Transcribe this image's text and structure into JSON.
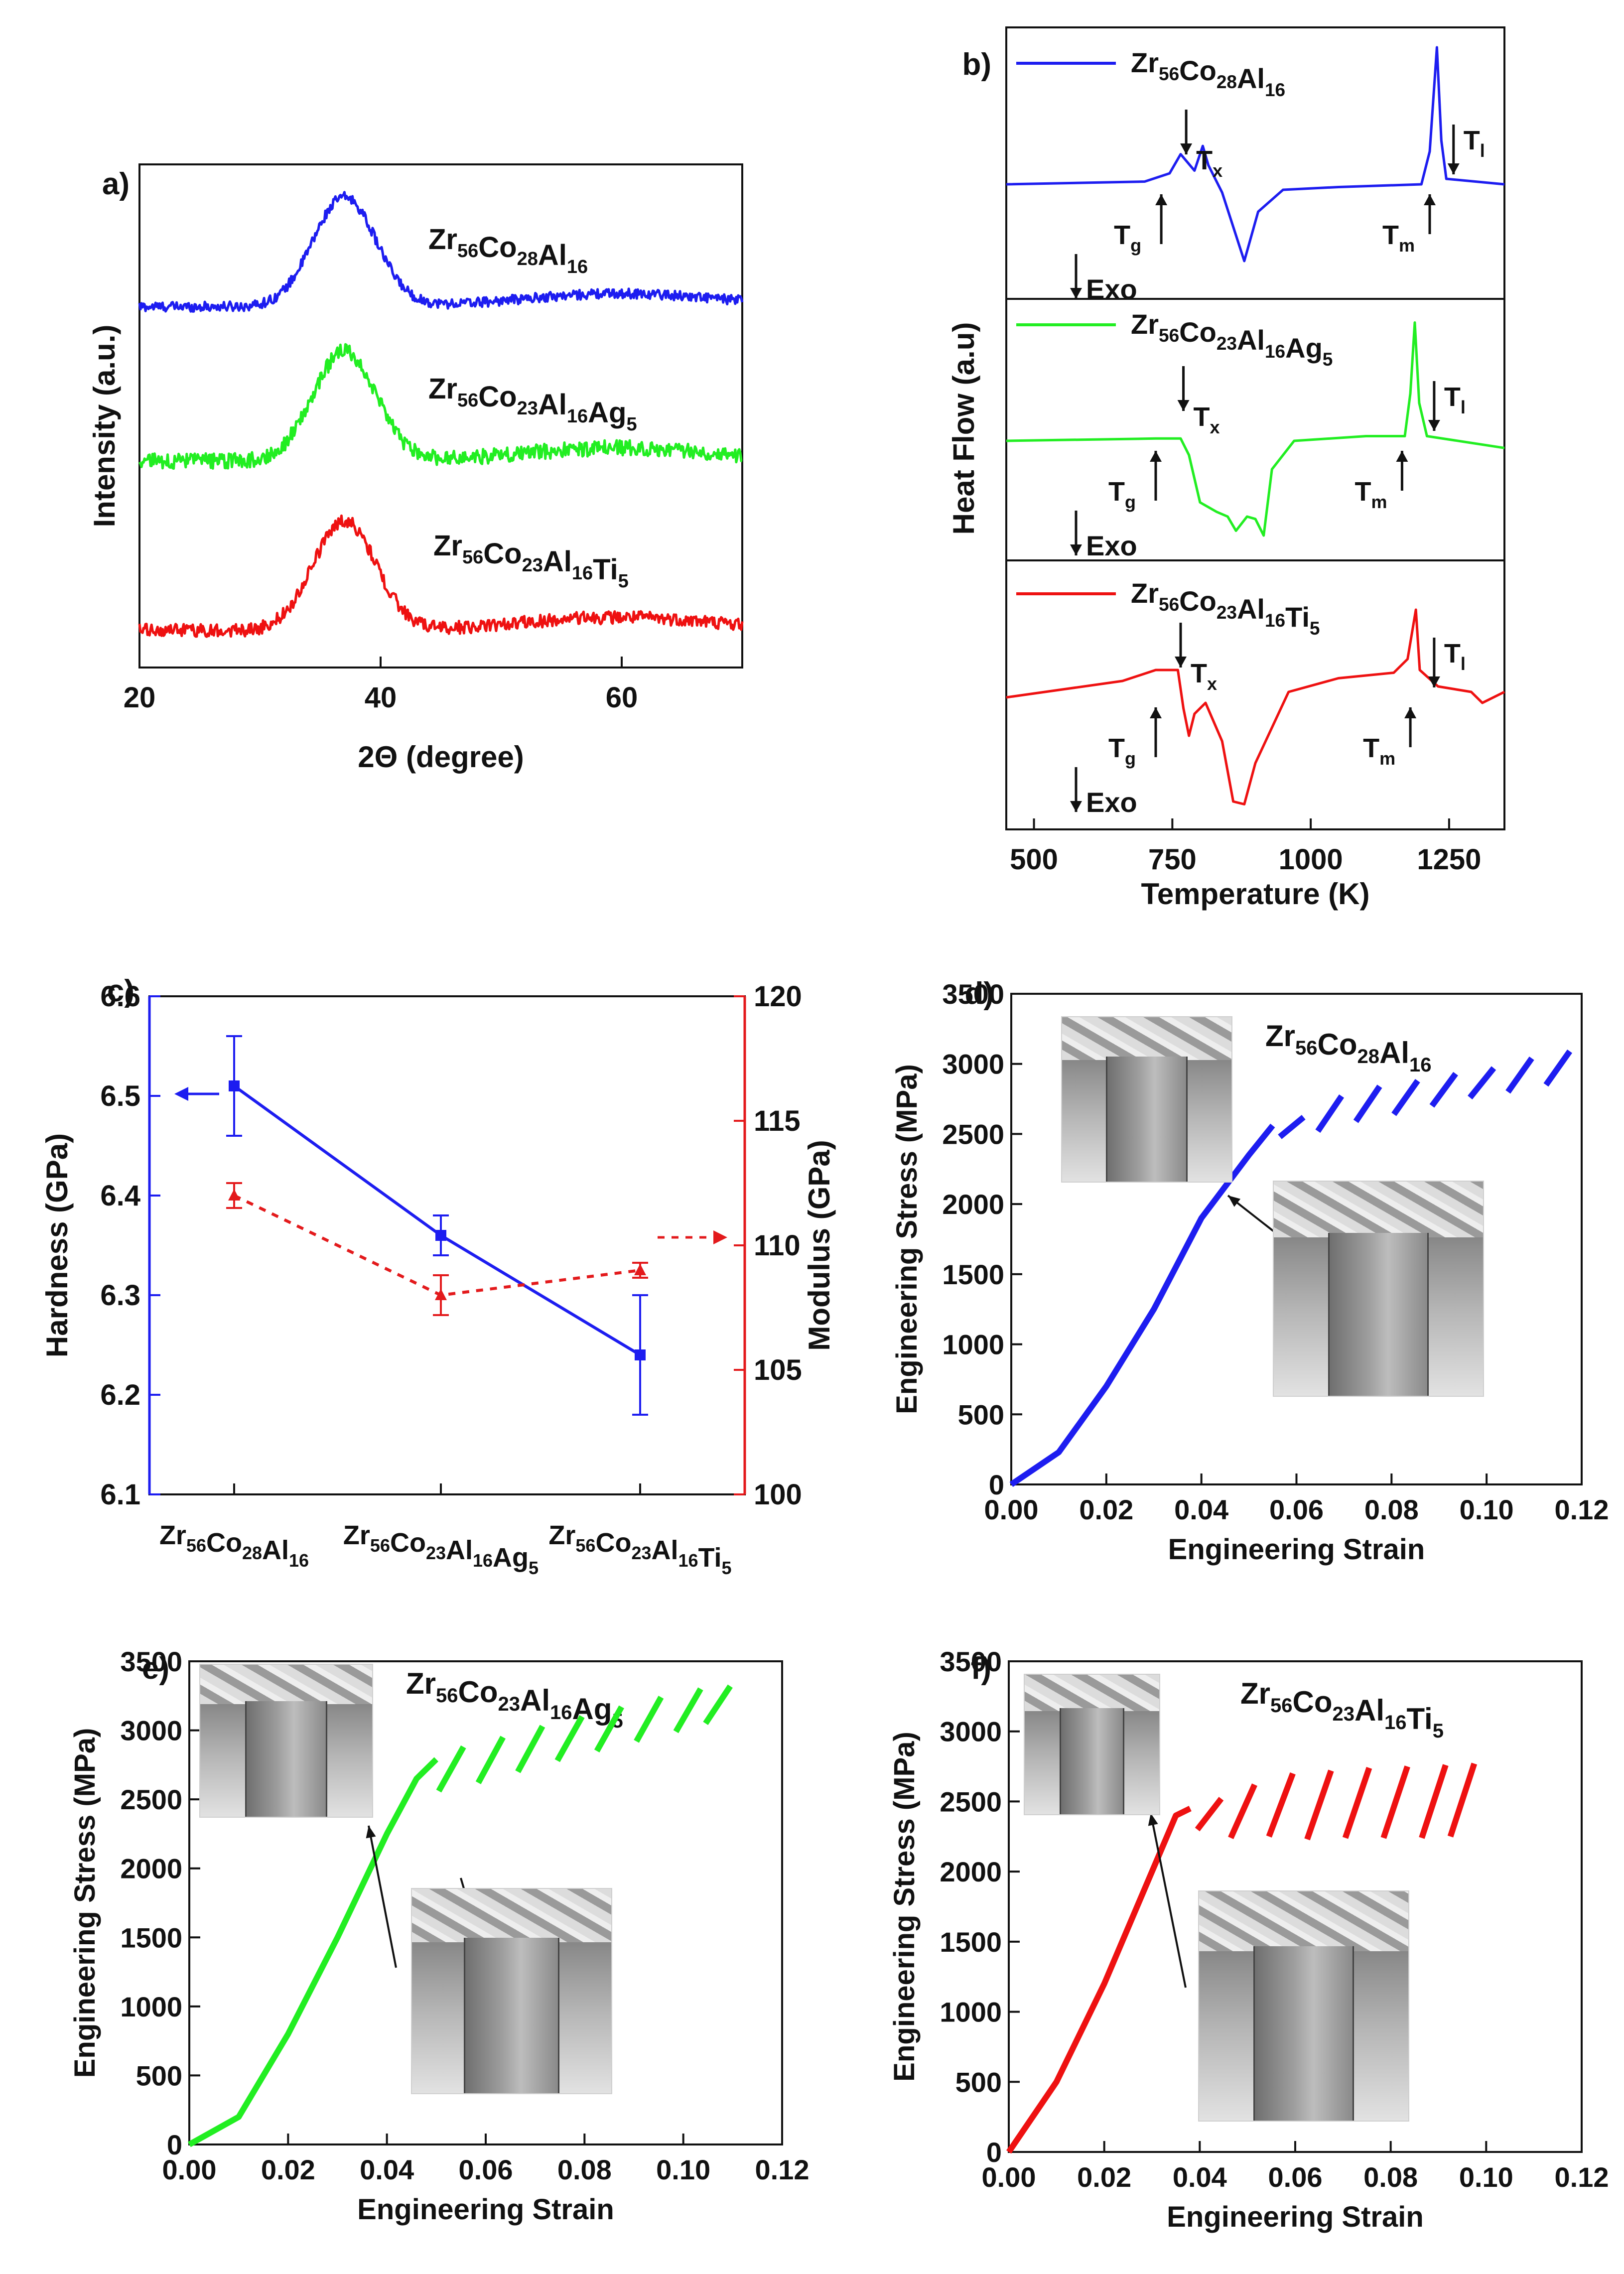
{
  "colors": {
    "blue": "#1d1df0",
    "green": "#22ee22",
    "red": "#ee1111",
    "modulus_red": "#e31a1c"
  },
  "chart_data": [
    {
      "panel": "a)",
      "type": "line",
      "xlabel": "2Θ (degree)",
      "ylabel": "Intensity (a.u.)",
      "xlim": [
        20,
        70
      ],
      "xticks": [
        "20",
        "40",
        "60"
      ],
      "series": [
        {
          "name_parts": [
            [
              "Zr",
              "56"
            ],
            [
              "Co",
              "28"
            ],
            [
              "Al",
              "16"
            ]
          ],
          "color": "#1d1df0",
          "peak_x": 37,
          "peak_height": 1.0,
          "noise": 0.09
        },
        {
          "name_parts": [
            [
              "Zr",
              "56"
            ],
            [
              "Co",
              "23"
            ],
            [
              "Al",
              "16"
            ],
            [
              "Ag",
              "5"
            ]
          ],
          "color": "#22ee22",
          "peak_x": 37,
          "peak_height": 1.0,
          "noise": 0.14
        },
        {
          "name_parts": [
            [
              "Zr",
              "56"
            ],
            [
              "Co",
              "23"
            ],
            [
              "Al",
              "16"
            ],
            [
              "Ti",
              "5"
            ]
          ],
          "color": "#ee1111",
          "peak_x": 37,
          "peak_height": 1.0,
          "noise": 0.12
        }
      ]
    },
    {
      "panel": "b)",
      "type": "line",
      "xlabel": "Temperature (K)",
      "ylabel": "Heat Flow (a.u)",
      "xlim": [
        450,
        1350
      ],
      "xticks": [
        "500",
        "750",
        "1000",
        "1250"
      ],
      "exo_label": "Exo",
      "series": [
        {
          "name_parts": [
            [
              "Zr",
              "56"
            ],
            [
              "Co",
              "28"
            ],
            [
              "Al",
              "16"
            ]
          ],
          "color": "#1d1df0",
          "Tg": 730,
          "Tx": 775,
          "Tm": 1215,
          "Tl": 1240,
          "points": [
            [
              450,
              0
            ],
            [
              700,
              0.05
            ],
            [
              745,
              0.2
            ],
            [
              765,
              0.55
            ],
            [
              790,
              0.25
            ],
            [
              805,
              0.7
            ],
            [
              815,
              0.35
            ],
            [
              840,
              -0.15
            ],
            [
              880,
              -1.4
            ],
            [
              905,
              -0.5
            ],
            [
              950,
              -0.1
            ],
            [
              1050,
              -0.05
            ],
            [
              1200,
              0
            ],
            [
              1215,
              0.6
            ],
            [
              1228,
              2.5
            ],
            [
              1236,
              0.8
            ],
            [
              1245,
              0.1
            ],
            [
              1350,
              0
            ]
          ]
        },
        {
          "name_parts": [
            [
              "Zr",
              "56"
            ],
            [
              "Co",
              "23"
            ],
            [
              "Al",
              "16"
            ],
            [
              "Ag",
              "5"
            ]
          ],
          "color": "#22ee22",
          "Tg": 720,
          "Tx": 770,
          "Tm": 1165,
          "Tl": 1205,
          "points": [
            [
              450,
              0
            ],
            [
              720,
              0.05
            ],
            [
              765,
              0.05
            ],
            [
              780,
              -0.3
            ],
            [
              800,
              -1.3
            ],
            [
              830,
              -1.5
            ],
            [
              850,
              -1.6
            ],
            [
              865,
              -1.9
            ],
            [
              885,
              -1.6
            ],
            [
              900,
              -1.65
            ],
            [
              915,
              -2.0
            ],
            [
              930,
              -0.6
            ],
            [
              970,
              0
            ],
            [
              1100,
              0.1
            ],
            [
              1170,
              0.1
            ],
            [
              1180,
              1.0
            ],
            [
              1188,
              2.5
            ],
            [
              1196,
              0.8
            ],
            [
              1210,
              0.1
            ],
            [
              1350,
              -0.15
            ]
          ]
        },
        {
          "name_parts": [
            [
              "Zr",
              "56"
            ],
            [
              "Co",
              "23"
            ],
            [
              "Al",
              "16"
            ],
            [
              "Ti",
              "5"
            ]
          ],
          "color": "#ee1111",
          "Tg": 720,
          "Tx": 765,
          "Tm": 1180,
          "Tl": 1205,
          "points": [
            [
              450,
              0
            ],
            [
              660,
              0.3
            ],
            [
              720,
              0.5
            ],
            [
              760,
              0.5
            ],
            [
              770,
              -0.2
            ],
            [
              780,
              -0.7
            ],
            [
              790,
              -0.3
            ],
            [
              810,
              -0.1
            ],
            [
              840,
              -0.8
            ],
            [
              860,
              -1.9
            ],
            [
              880,
              -1.95
            ],
            [
              900,
              -1.2
            ],
            [
              960,
              0.1
            ],
            [
              1050,
              0.35
            ],
            [
              1150,
              0.45
            ],
            [
              1175,
              0.7
            ],
            [
              1190,
              1.6
            ],
            [
              1197,
              0.5
            ],
            [
              1230,
              0.2
            ],
            [
              1290,
              0.1
            ],
            [
              1310,
              -0.1
            ],
            [
              1350,
              0.1
            ]
          ]
        }
      ]
    },
    {
      "panel": "c)",
      "type": "line",
      "ylabel_left": "Hardness (GPa)",
      "ylabel_right": "Modulus (GPa)",
      "ylim_left": [
        6.1,
        6.6
      ],
      "yticks_left": [
        "6.1",
        "6.2",
        "6.3",
        "6.4",
        "6.5",
        "6.6"
      ],
      "ylim_right": [
        100,
        120
      ],
      "yticks_right": [
        "100",
        "105",
        "110",
        "115",
        "120"
      ],
      "categories_parts": [
        [
          [
            "Zr",
            "56"
          ],
          [
            "Co",
            "28"
          ],
          [
            "Al",
            "16"
          ]
        ],
        [
          [
            "Zr",
            "56"
          ],
          [
            "Co",
            "23"
          ],
          [
            "Al",
            "16"
          ],
          [
            "Ag",
            "5"
          ]
        ],
        [
          [
            "Zr",
            "56"
          ],
          [
            "Co",
            "23"
          ],
          [
            "Al",
            "16"
          ],
          [
            "Ti",
            "5"
          ]
        ]
      ],
      "series": [
        {
          "name": "Hardness",
          "axis": "left",
          "values": [
            6.51,
            6.36,
            6.24
          ],
          "errors": [
            0.05,
            0.02,
            0.06
          ]
        },
        {
          "name": "Modulus",
          "axis": "right",
          "values": [
            112.0,
            108.0,
            109.0
          ],
          "errors": [
            0.5,
            0.8,
            0.3
          ]
        }
      ]
    },
    {
      "panel": "d)",
      "type": "line",
      "xlabel": "Engineering Strain",
      "ylabel": "Engineering Stress (MPa)",
      "xlim": [
        0,
        0.12
      ],
      "xticks": [
        "0.00",
        "0.02",
        "0.04",
        "0.06",
        "0.08",
        "0.10",
        "0.12"
      ],
      "ylim": [
        0,
        3500
      ],
      "yticks": [
        "0",
        "500",
        "1000",
        "1500",
        "2000",
        "2500",
        "3000",
        "3500"
      ],
      "title_parts": [
        [
          "Zr",
          "56"
        ],
        [
          "Co",
          "28"
        ],
        [
          "Al",
          "16"
        ]
      ],
      "color": "#1d1df0",
      "loading": [
        [
          0,
          0
        ],
        [
          0.01,
          230
        ],
        [
          0.02,
          700
        ],
        [
          0.03,
          1250
        ],
        [
          0.04,
          1900
        ],
        [
          0.05,
          2350
        ],
        [
          0.055,
          2560
        ]
      ],
      "serrations": [
        [
          0.058,
          2480,
          2620
        ],
        [
          0.066,
          2520,
          2770
        ],
        [
          0.074,
          2590,
          2840
        ],
        [
          0.082,
          2640,
          2880
        ],
        [
          0.09,
          2700,
          2930
        ],
        [
          0.098,
          2760,
          2970
        ],
        [
          0.106,
          2800,
          3040
        ],
        [
          0.114,
          2850,
          3090
        ]
      ]
    },
    {
      "panel": "e)",
      "type": "line",
      "xlabel": "Engineering Strain",
      "ylabel": "Engineering Stress (MPa)",
      "xlim": [
        0,
        0.12
      ],
      "xticks": [
        "0.00",
        "0.02",
        "0.04",
        "0.06",
        "0.08",
        "0.10",
        "0.12"
      ],
      "ylim": [
        0,
        3500
      ],
      "yticks": [
        "0",
        "500",
        "1000",
        "1500",
        "2000",
        "2500",
        "3000",
        "3500"
      ],
      "title_parts": [
        [
          "Zr",
          "56"
        ],
        [
          "Co",
          "23"
        ],
        [
          "Al",
          "16"
        ],
        [
          "Ag",
          "5"
        ]
      ],
      "color": "#22ee22",
      "loading": [
        [
          0,
          0
        ],
        [
          0.01,
          200
        ],
        [
          0.02,
          800
        ],
        [
          0.03,
          1500
        ],
        [
          0.04,
          2250
        ],
        [
          0.046,
          2650
        ],
        [
          0.05,
          2790
        ]
      ],
      "serrations": [
        [
          0.052,
          2560,
          2880
        ],
        [
          0.06,
          2620,
          2950
        ],
        [
          0.068,
          2700,
          3030
        ],
        [
          0.076,
          2780,
          3100
        ],
        [
          0.084,
          2850,
          3170
        ],
        [
          0.092,
          2920,
          3240
        ],
        [
          0.1,
          2990,
          3300
        ],
        [
          0.106,
          3050,
          3320
        ]
      ]
    },
    {
      "panel": "f)",
      "type": "line",
      "xlabel": "Engineering Strain",
      "ylabel": "Engineering Stress (MPa)",
      "xlim": [
        0,
        0.12
      ],
      "xticks": [
        "0.00",
        "0.02",
        "0.04",
        "0.06",
        "0.08",
        "0.10",
        "0.12"
      ],
      "ylim": [
        0,
        3500
      ],
      "yticks": [
        "0",
        "500",
        "1000",
        "1500",
        "2000",
        "2500",
        "3000",
        "3500"
      ],
      "title_parts": [
        [
          "Zr",
          "56"
        ],
        [
          "Co",
          "23"
        ],
        [
          "Al",
          "16"
        ],
        [
          "Ti",
          "5"
        ]
      ],
      "color": "#ee1111",
      "loading": [
        [
          0,
          0
        ],
        [
          0.01,
          500
        ],
        [
          0.02,
          1200
        ],
        [
          0.03,
          2000
        ],
        [
          0.035,
          2400
        ],
        [
          0.038,
          2450
        ]
      ],
      "serrations": [
        [
          0.041,
          2300,
          2520
        ],
        [
          0.048,
          2240,
          2620
        ],
        [
          0.056,
          2250,
          2700
        ],
        [
          0.064,
          2230,
          2720
        ],
        [
          0.072,
          2240,
          2740
        ],
        [
          0.08,
          2240,
          2750
        ],
        [
          0.088,
          2240,
          2760
        ],
        [
          0.094,
          2250,
          2770
        ]
      ]
    }
  ],
  "markers": {
    "Tg": [
      "T",
      "g"
    ],
    "Tx": [
      "T",
      "x"
    ],
    "Tm": [
      "T",
      "m"
    ],
    "Tl": [
      "T",
      "l"
    ]
  }
}
